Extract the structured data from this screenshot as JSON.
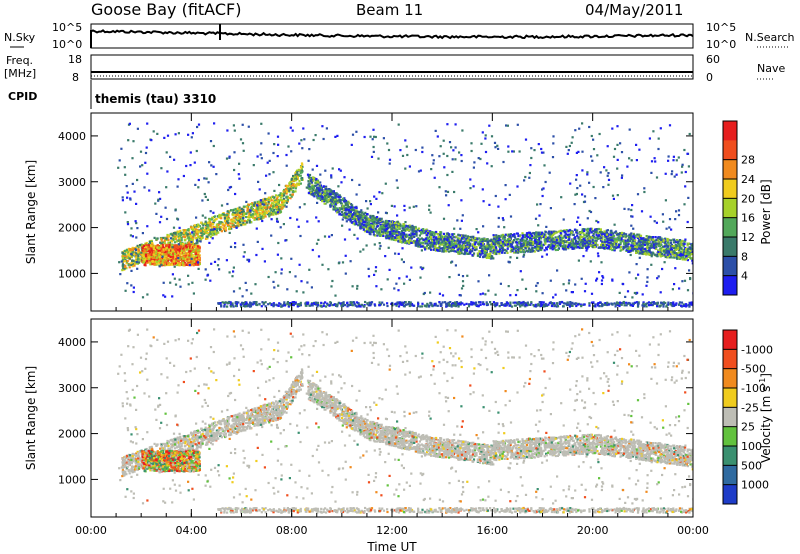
{
  "header": {
    "station": "Goose Bay (fitACF)",
    "beam": "Beam 11",
    "date": "04/May/2011"
  },
  "top_panels": {
    "nsky": {
      "label": "N.Sky",
      "tick_top": "10^5",
      "tick_bottom": "10^0",
      "right_label": "N.Search",
      "right_tick_top": "10^5",
      "right_tick_bottom": "10^0"
    },
    "freq": {
      "label_line1": "Freq.",
      "label_line2": "[MHz]",
      "tick_top": "18",
      "tick_bottom": "8",
      "right_label": "Nave",
      "right_tick_top": "60",
      "right_tick_bottom": "0"
    },
    "cpid": {
      "label": "CPID",
      "text": "themis (tau) 3310"
    }
  },
  "chart_data": [
    {
      "type": "heatmap",
      "panel": "power",
      "ylabel": "Slant Range [km]",
      "yticks": [
        1000,
        2000,
        3000,
        4000
      ],
      "ylim": [
        180,
        4500
      ],
      "xlim": [
        0,
        24
      ],
      "colorbar": {
        "label": "Power [dB]",
        "ticks": [
          "4",
          "8",
          "12",
          "16",
          "20",
          "24",
          "28"
        ],
        "colors": [
          "#1e1ef0",
          "#2c4fa8",
          "#3a7a6a",
          "#52a85a",
          "#a6d12a",
          "#f0cc1e",
          "#f08a1e",
          "#f04e1e",
          "#e61e1e"
        ]
      },
      "features": [
        {
          "name": "early band",
          "t": [
            1.2,
            4.0,
            5.5,
            7.5,
            8.4
          ],
          "r": [
            1300,
            1850,
            2200,
            2550,
            3250
          ],
          "level": "strong"
        },
        {
          "name": "dense patch",
          "t": [
            2.0,
            4.3
          ],
          "r": [
            1200,
            1650
          ],
          "level": "very strong"
        },
        {
          "name": "post-peak band",
          "t": [
            8.6,
            11.0,
            13.5,
            16.0
          ],
          "r": [
            3000,
            2100,
            1750,
            1550
          ],
          "level": "moderate"
        },
        {
          "name": "late band",
          "t": [
            16.0,
            20.0,
            24.0
          ],
          "r": [
            1650,
            1800,
            1500
          ],
          "level": "moderate"
        },
        {
          "name": "ground scatter strip",
          "t": [
            5.0,
            24.0
          ],
          "r": [
            300,
            400
          ],
          "level": "weak"
        }
      ]
    },
    {
      "type": "heatmap",
      "panel": "velocity",
      "ylabel": "Slant Range [km]",
      "yticks": [
        1000,
        2000,
        3000,
        4000
      ],
      "ylim": [
        180,
        4500
      ],
      "xlim": [
        0,
        24
      ],
      "xticks": [
        "00:00",
        "04:00",
        "08:00",
        "12:00",
        "16:00",
        "20:00",
        "00:00"
      ],
      "xlabel": "Time UT",
      "colorbar": {
        "label": "Velocity [m s^-1]",
        "ticks": [
          "1000",
          "500",
          "100",
          "25",
          "-25",
          "-100",
          "-500",
          "-1000"
        ],
        "colors": [
          "#1e3cc8",
          "#2f6aa0",
          "#3a9070",
          "#62c23e",
          "#bdbdb5",
          "#f0cc1e",
          "#f08a1e",
          "#f04e1e",
          "#e61e1e"
        ]
      }
    }
  ]
}
